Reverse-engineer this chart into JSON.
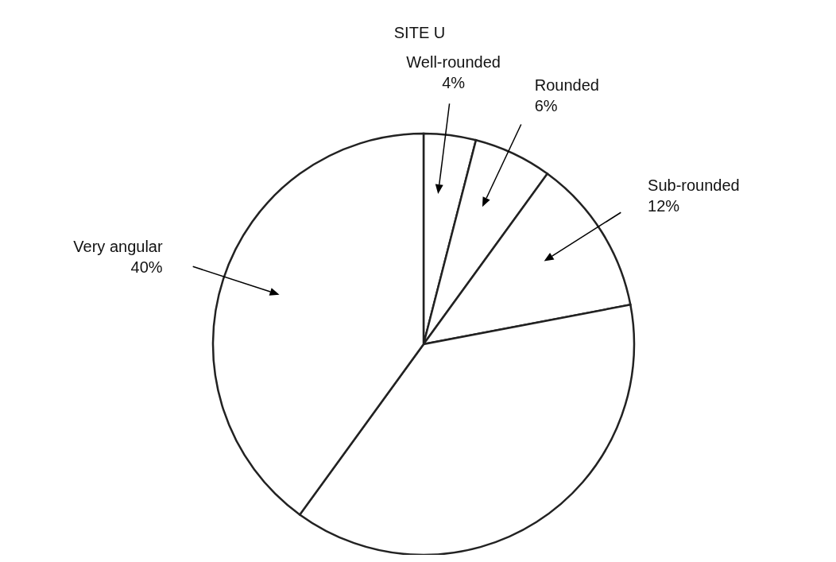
{
  "chart_data": {
    "type": "pie",
    "title": "SITE U",
    "categories": [
      "Well-rounded",
      "Rounded",
      "Sub-rounded",
      null,
      "Very angular"
    ],
    "values": [
      4,
      6,
      12,
      38,
      40
    ],
    "value_labels": [
      "4%",
      "6%",
      "12%",
      null,
      "40%"
    ],
    "colors": [
      "#ffffff",
      "#ffffff",
      "#ffffff",
      "#ffffff",
      "#ffffff"
    ]
  }
}
